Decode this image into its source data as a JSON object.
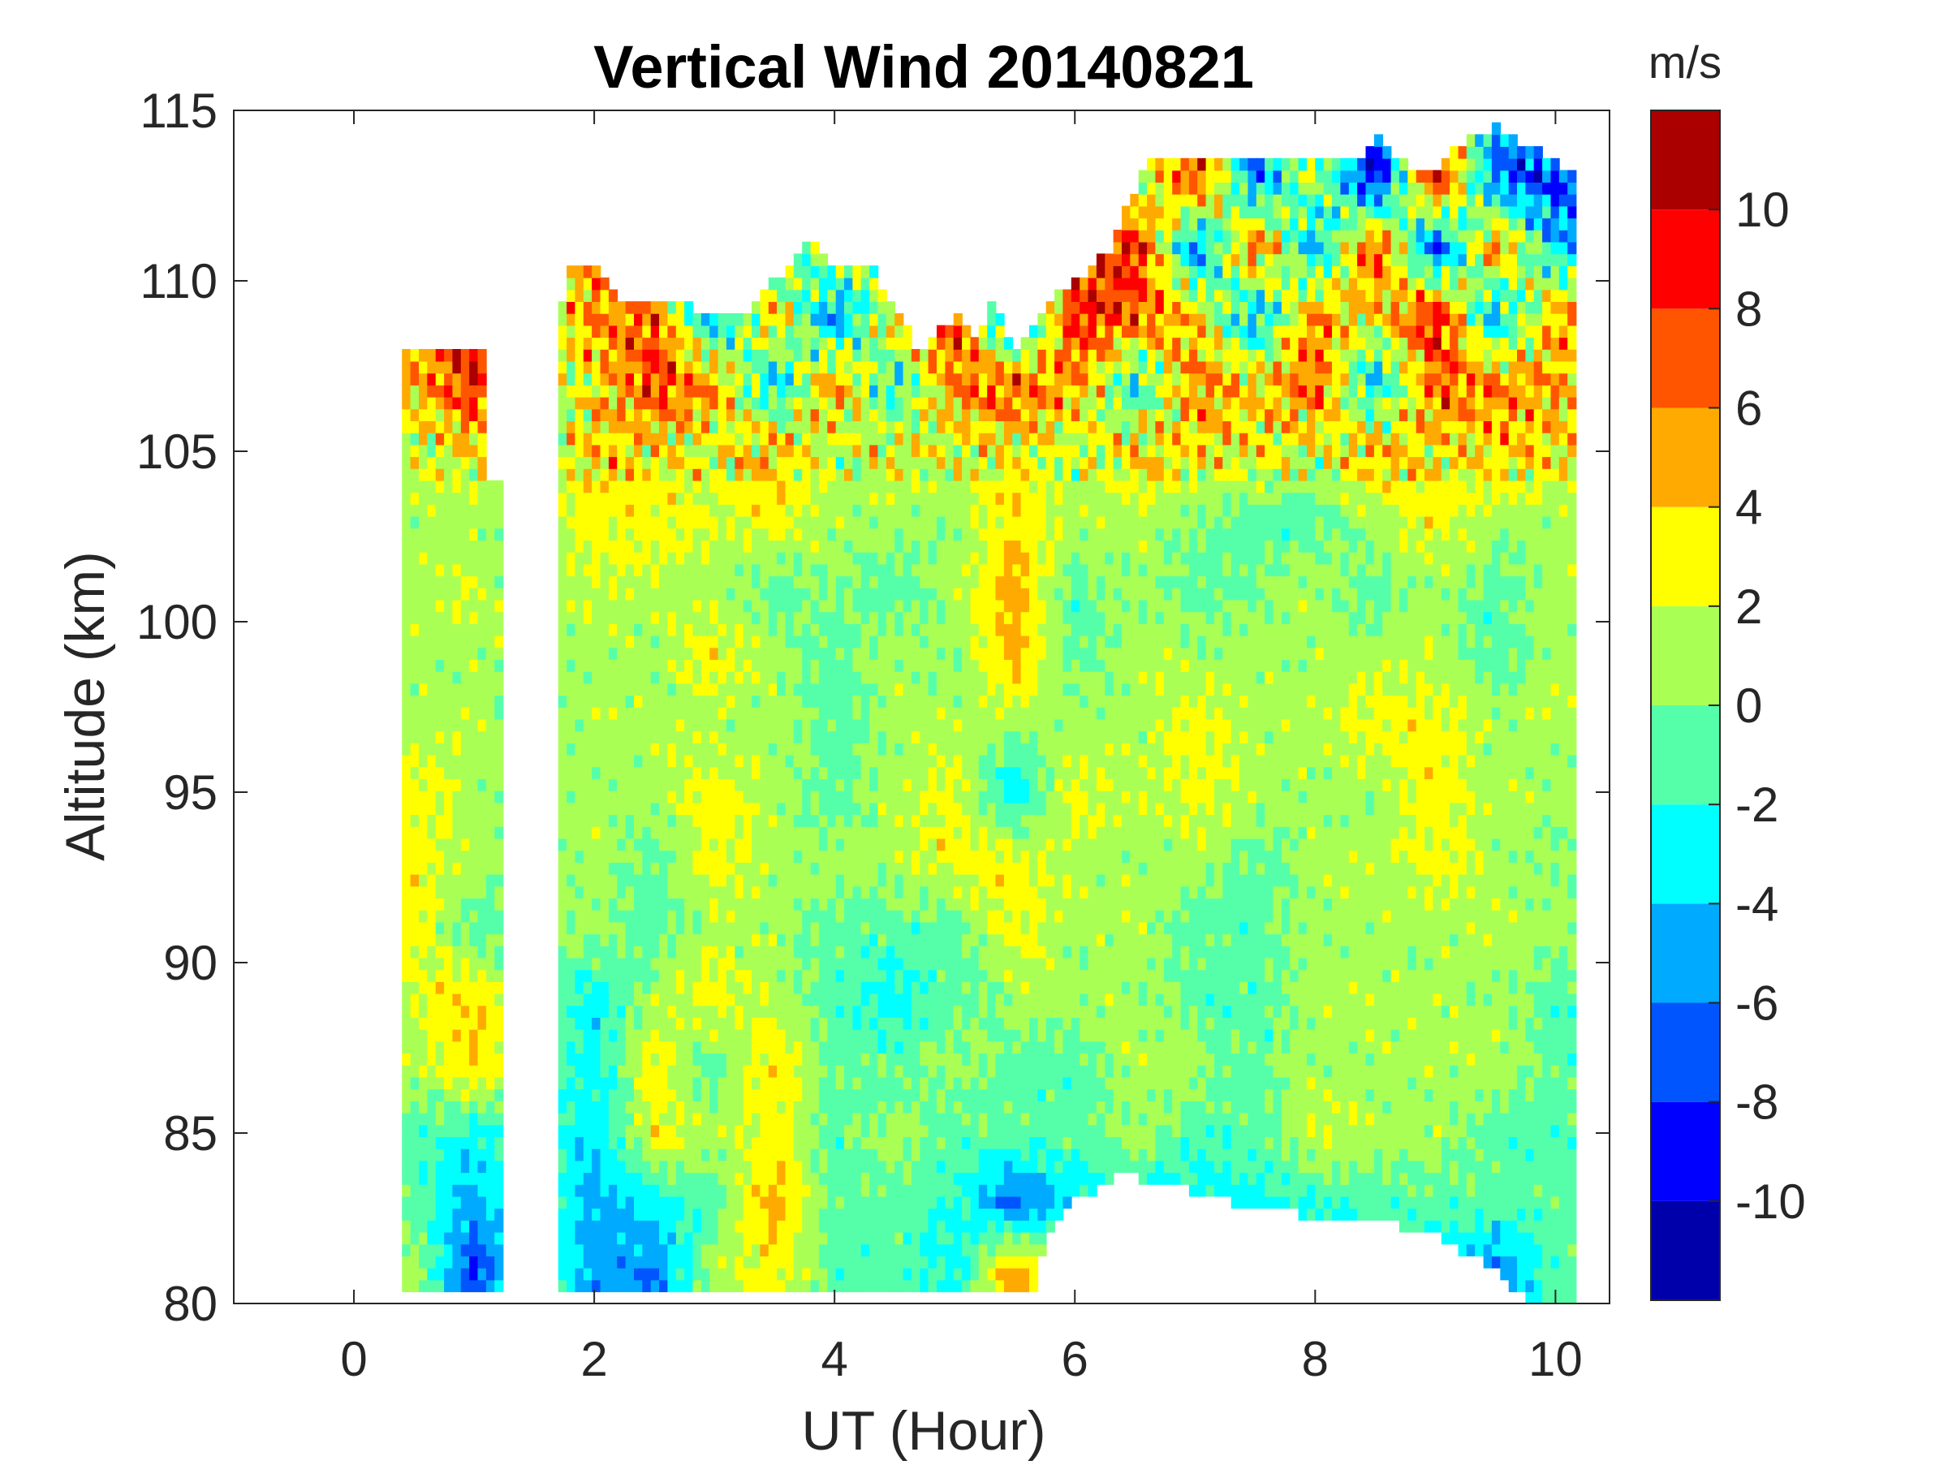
{
  "chart_data": {
    "type": "heatmap",
    "subtype": "filled-contour",
    "title": "Vertical Wind 20140821",
    "xlabel": "UT (Hour)",
    "ylabel": "Altitude (km)",
    "colorbar_label": "m/s",
    "xlim": [
      -1,
      10.45
    ],
    "ylim": [
      80,
      115
    ],
    "xticks": [
      0,
      2,
      4,
      6,
      8,
      10
    ],
    "yticks": [
      80,
      85,
      90,
      95,
      100,
      105,
      110,
      115
    ],
    "colorbar_ticks": [
      -10,
      -8,
      -6,
      -4,
      -2,
      0,
      2,
      4,
      6,
      8,
      10
    ],
    "colorbar_range": [
      -12,
      12
    ],
    "levels": [
      -12,
      -10,
      -8,
      -6,
      -4,
      -2,
      0,
      2,
      4,
      6,
      8,
      10,
      12
    ],
    "colors": [
      "#0000aa",
      "#0000ff",
      "#0055ff",
      "#00aaff",
      "#00ffff",
      "#55ffaa",
      "#aaff55",
      "#ffff00",
      "#ffaa00",
      "#ff5500",
      "#ff0000",
      "#aa0000"
    ],
    "data_segments": [
      [
        0.4,
        1.2
      ],
      [
        1.7,
        10.2
      ]
    ],
    "top_profile": [
      [
        0.4,
        108
      ],
      [
        1.1,
        108
      ],
      [
        1.12,
        104
      ],
      [
        1.2,
        104
      ],
      [
        1.7,
        109
      ],
      [
        1.8,
        110.5
      ],
      [
        2.0,
        110.5
      ],
      [
        2.2,
        109.5
      ],
      [
        2.7,
        109.5
      ],
      [
        2.9,
        109
      ],
      [
        3.3,
        109
      ],
      [
        3.5,
        110
      ],
      [
        3.8,
        111.2
      ],
      [
        4.0,
        110.5
      ],
      [
        4.3,
        110.5
      ],
      [
        4.7,
        108
      ],
      [
        5.0,
        109
      ],
      [
        5.2,
        108
      ],
      [
        5.3,
        109.5
      ],
      [
        5.5,
        108
      ],
      [
        5.8,
        109.5
      ],
      [
        6.0,
        110
      ],
      [
        6.3,
        111
      ],
      [
        6.6,
        113.5
      ],
      [
        8.4,
        113.5
      ],
      [
        8.5,
        114.5
      ],
      [
        8.7,
        113.5
      ],
      [
        9.0,
        113
      ],
      [
        9.2,
        114
      ],
      [
        9.5,
        114.5
      ],
      [
        10.0,
        113.5
      ],
      [
        10.2,
        113
      ]
    ],
    "bottom_profile": [
      [
        0.4,
        80.5
      ],
      [
        1.2,
        80.5
      ],
      [
        1.7,
        80.5
      ],
      [
        5.7,
        80.5
      ],
      [
        5.75,
        82
      ],
      [
        6.0,
        83
      ],
      [
        6.4,
        83.8
      ],
      [
        7.0,
        83.3
      ],
      [
        7.5,
        82.7
      ],
      [
        8.5,
        82.5
      ],
      [
        9.0,
        82
      ],
      [
        9.5,
        81
      ],
      [
        9.8,
        80
      ],
      [
        10.2,
        80
      ]
    ],
    "grid_x": [
      0.5,
      1.0,
      1.5,
      2.0,
      2.5,
      3.0,
      3.5,
      4.0,
      4.5,
      5.0,
      5.5,
      6.0,
      6.5,
      7.0,
      7.5,
      8.0,
      8.5,
      9.0,
      9.5,
      10.0
    ],
    "grid_altitudes": [
      113,
      111,
      109,
      107,
      105,
      103,
      101,
      99,
      97,
      95,
      93,
      91,
      89,
      87,
      85,
      83,
      81
    ],
    "values": [
      [
        0,
        0,
        0,
        0,
        0,
        0,
        0,
        0,
        0,
        0,
        0,
        0,
        0,
        8,
        -6,
        2,
        -10,
        10,
        -6,
        -8
      ],
      [
        0,
        0,
        0,
        5,
        -5,
        4,
        -4,
        3,
        -2,
        0,
        0,
        6,
        9,
        -6,
        7,
        -5,
        8,
        -8,
        6,
        -4
      ],
      [
        6,
        8,
        0,
        6,
        7,
        -5,
        5,
        -6,
        4,
        8,
        -8,
        9,
        7,
        4,
        -5,
        6,
        3,
        9,
        -5,
        5
      ],
      [
        4,
        9,
        0,
        3,
        8,
        5,
        -4,
        6,
        -3,
        6,
        7,
        5,
        -3,
        6,
        4,
        7,
        -4,
        7,
        6,
        5
      ],
      [
        2,
        3,
        0,
        4,
        3,
        2,
        5,
        1,
        3,
        2,
        3,
        1,
        4,
        3,
        3,
        2,
        5,
        3,
        4,
        3
      ],
      [
        1,
        1,
        0,
        3,
        3,
        2,
        3,
        1,
        1,
        0,
        4,
        1,
        1,
        0,
        -1,
        -1,
        1,
        3,
        1,
        1
      ],
      [
        1,
        2,
        0,
        2,
        1,
        1,
        -1,
        0,
        -1,
        1,
        5,
        -1,
        1,
        -1,
        0,
        1,
        -1,
        1,
        -1,
        1
      ],
      [
        1,
        1,
        0,
        1,
        1,
        3,
        1,
        -1,
        1,
        0,
        5,
        -1,
        1,
        1,
        1,
        1,
        1,
        1,
        -1,
        1
      ],
      [
        1,
        1,
        0,
        1,
        1,
        1,
        1,
        -1,
        1,
        1,
        1,
        1,
        1,
        3,
        1,
        1,
        3,
        3,
        1,
        1
      ],
      [
        3,
        1,
        0,
        1,
        1,
        3,
        1,
        -1,
        1,
        3,
        -4,
        3,
        1,
        3,
        1,
        1,
        1,
        3,
        1,
        1
      ],
      [
        3,
        1,
        0,
        1,
        -1,
        3,
        1,
        1,
        1,
        3,
        3,
        1,
        1,
        1,
        -1,
        1,
        1,
        3,
        1,
        0
      ],
      [
        3,
        -1,
        0,
        1,
        -1,
        1,
        1,
        -1,
        -1,
        -1,
        3,
        1,
        1,
        -1,
        -1,
        1,
        1,
        1,
        1,
        1
      ],
      [
        2,
        4,
        0,
        -3,
        1,
        3,
        1,
        -1,
        -3,
        -1,
        1,
        1,
        1,
        -1,
        -1,
        1,
        1,
        1,
        1,
        -1
      ],
      [
        1,
        4,
        0,
        -3,
        3,
        -1,
        4,
        -1,
        -1,
        1,
        -1,
        -1,
        1,
        1,
        -1,
        1,
        1,
        1,
        1,
        -1
      ],
      [
        -1,
        -3,
        0,
        -4,
        3,
        1,
        3,
        -1,
        1,
        -1,
        -1,
        -1,
        1,
        -1,
        -1,
        2,
        1,
        1,
        -1,
        -1
      ],
      [
        -1,
        -5,
        0,
        -5,
        -3,
        -1,
        5,
        -1,
        -1,
        -2,
        -7,
        -3,
        -3,
        -3,
        -3,
        -2,
        -1,
        -1,
        -1,
        -1
      ],
      [
        1,
        -8,
        0,
        -5,
        -6,
        1,
        3,
        -1,
        -1,
        -3,
        6,
        -3,
        -3,
        -3,
        -3,
        -3,
        -3,
        -3,
        -6,
        -1
      ]
    ]
  }
}
